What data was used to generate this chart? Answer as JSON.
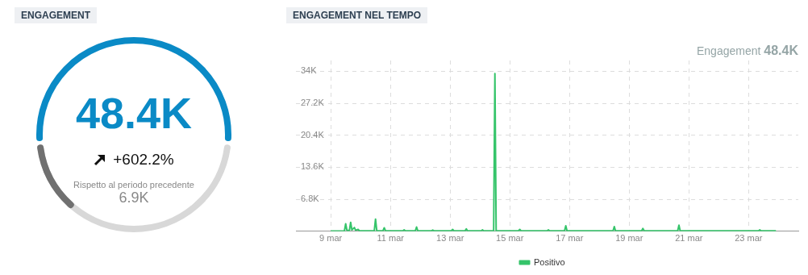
{
  "chart_data": [
    {
      "type": "other",
      "title": "ENGAGEMENT",
      "annotations": [
        "48.4K",
        "+602.2%",
        "Rispetto al periodo precedente",
        "6.9K"
      ]
    },
    {
      "type": "line",
      "title": "ENGAGEMENT NEL TEMPO",
      "annotations": [
        "Engagement 48.4K"
      ],
      "series": [
        {
          "name": "Positivo",
          "color": "#35c46a",
          "x": [
            "--03-09T00:00",
            "--03-09T11:00",
            "--03-09T12:00",
            "--03-09T13:00",
            "--03-09T15:00",
            "--03-09T16:00",
            "--03-09T17:00",
            "--03-09T19:00",
            "--03-09T20:00",
            "--03-09T22:00",
            "--03-09T23:00",
            "--03-10T11:00",
            "--03-10T12:00",
            "--03-10T13:00",
            "--03-10T18:00",
            "--03-10T19:00",
            "--03-10T20:00",
            "--03-11T10:00",
            "--03-11T11:00",
            "--03-11T12:00",
            "--03-11T20:00",
            "--03-11T21:00",
            "--03-11T22:00",
            "--03-12T09:00",
            "--03-12T10:00",
            "--03-12T11:00",
            "--03-13T01:00",
            "--03-13T02:00",
            "--03-13T03:00",
            "--03-13T12:00",
            "--03-13T13:00",
            "--03-13T14:00",
            "--03-14T01:00",
            "--03-14T02:00",
            "--03-14T03:00",
            "--03-14T11:00",
            "--03-14T12:00",
            "--03-14T13:00",
            "--03-15T07:00",
            "--03-15T08:00",
            "--03-15T09:00",
            "--03-16T06:00",
            "--03-16T07:00",
            "--03-16T08:00",
            "--03-16T20:00",
            "--03-16T21:00",
            "--03-16T22:00",
            "--03-18T11:00",
            "--03-18T12:00",
            "--03-18T13:00",
            "--03-19T10:00",
            "--03-19T11:00",
            "--03-19T12:00",
            "--03-20T15:00",
            "--03-20T16:00",
            "--03-20T17:00",
            "--03-23T08:00",
            "--03-23T09:00",
            "--03-23T10:00",
            "--03-23T22:00"
          ],
          "values": [
            50,
            100,
            1600,
            200,
            200,
            1900,
            300,
            800,
            200,
            400,
            100,
            100,
            2600,
            100,
            100,
            750,
            100,
            100,
            300,
            100,
            100,
            900,
            100,
            100,
            250,
            100,
            100,
            400,
            100,
            100,
            500,
            100,
            100,
            300,
            100,
            100,
            33500,
            100,
            100,
            400,
            100,
            100,
            300,
            100,
            100,
            1150,
            100,
            100,
            1000,
            100,
            100,
            600,
            100,
            100,
            1300,
            100,
            100,
            300,
            100,
            100
          ]
        }
      ],
      "xlim": [
        "--03-07T20:00",
        "--03-24T16:00"
      ],
      "xticks": [
        {
          "value": "--03-09",
          "label": "9 mar"
        },
        {
          "value": "--03-11",
          "label": "11 mar"
        },
        {
          "value": "--03-13",
          "label": "13 mar"
        },
        {
          "value": "--03-15",
          "label": "15 mar"
        },
        {
          "value": "--03-17",
          "label": "17 mar"
        },
        {
          "value": "--03-19",
          "label": "19 mar"
        },
        {
          "value": "--03-21",
          "label": "21 mar"
        },
        {
          "value": "--03-23",
          "label": "23 mar"
        }
      ],
      "ylim": [
        0,
        36300
      ],
      "yticks": [
        {
          "value": 6800,
          "label": "6.8K"
        },
        {
          "value": 13600,
          "label": "13.6K"
        },
        {
          "value": 20400,
          "label": "20.4K"
        },
        {
          "value": 27200,
          "label": "27.2K"
        },
        {
          "value": 34000,
          "label": "34K"
        }
      ],
      "grid": true,
      "legend": "bottom",
      "marker": "none",
      "line_style": "solid"
    }
  ]
}
